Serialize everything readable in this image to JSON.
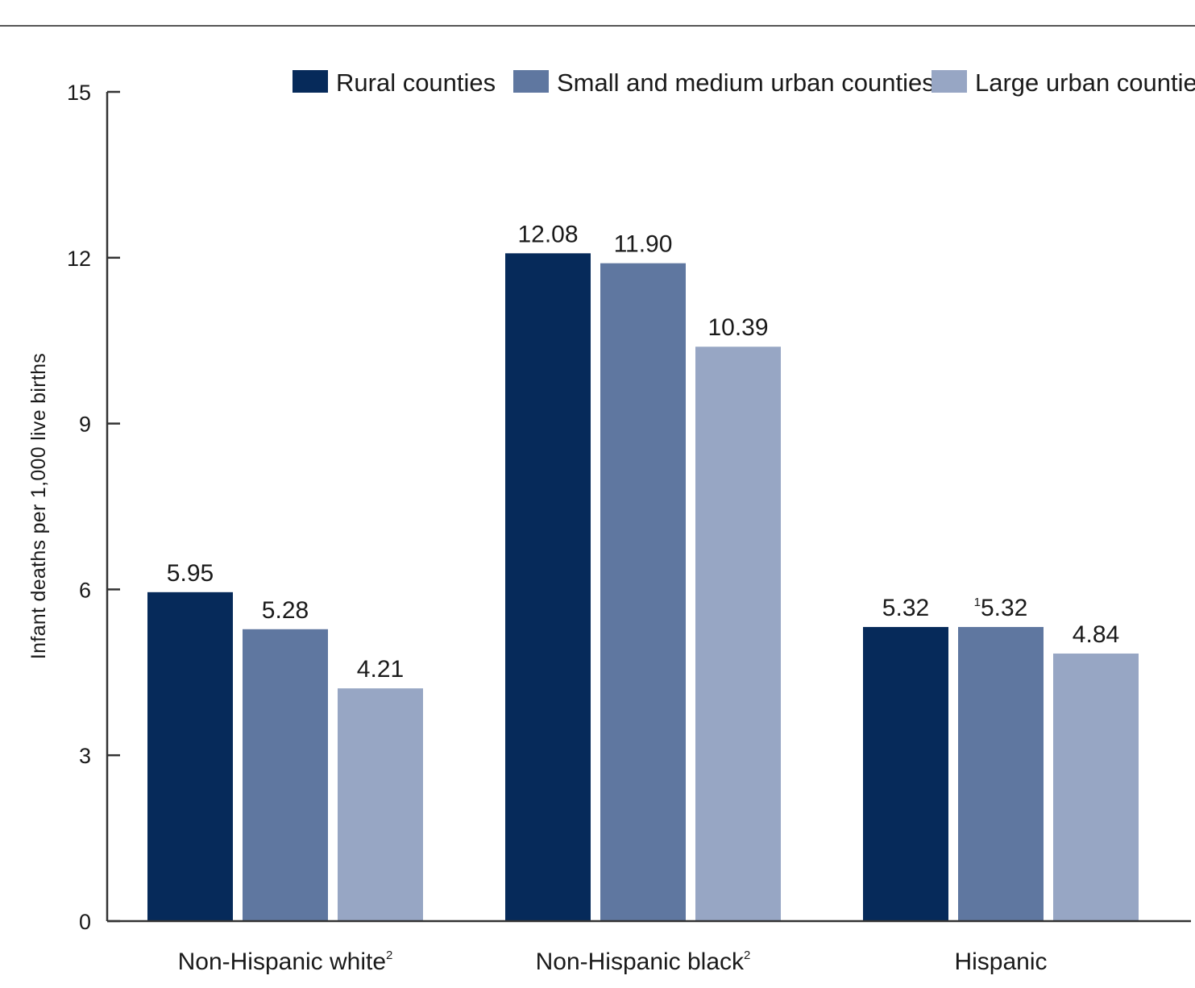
{
  "chart_data": {
    "type": "bar",
    "title": "",
    "xlabel": "",
    "ylabel": "Infant deaths per 1,000 live births",
    "ylim": [
      0,
      15
    ],
    "yticks": [
      0,
      3,
      6,
      9,
      12,
      15
    ],
    "grid": false,
    "legend_position": "top",
    "categories": [
      {
        "label": "Non-Hispanic white",
        "sup": "2"
      },
      {
        "label": "Non-Hispanic black",
        "sup": "2"
      },
      {
        "label": "Hispanic",
        "sup": ""
      }
    ],
    "series": [
      {
        "name": "Rural counties",
        "color": "#062a5a",
        "values": [
          5.95,
          12.08,
          5.32
        ],
        "labels": [
          {
            "sup": "",
            "text": "5.95"
          },
          {
            "sup": "",
            "text": "12.08"
          },
          {
            "sup": "",
            "text": "5.32"
          }
        ]
      },
      {
        "name": "Small and medium urban counties",
        "color": "#5f77a0",
        "values": [
          5.28,
          11.9,
          5.32
        ],
        "labels": [
          {
            "sup": "",
            "text": "5.28"
          },
          {
            "sup": "",
            "text": "11.90"
          },
          {
            "sup": "1",
            "text": "5.32"
          }
        ]
      },
      {
        "name": "Large urban counties",
        "color": "#97a6c4",
        "values": [
          4.21,
          10.39,
          4.84
        ],
        "labels": [
          {
            "sup": "",
            "text": "4.21"
          },
          {
            "sup": "",
            "text": "10.39"
          },
          {
            "sup": "",
            "text": "4.84"
          }
        ]
      }
    ]
  }
}
